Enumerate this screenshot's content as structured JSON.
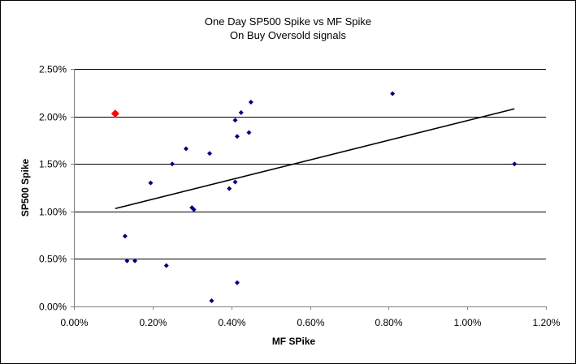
{
  "chart_data": {
    "type": "scatter",
    "title": "One Day SP500 Spike vs MF Spike",
    "subtitle": "On Buy Oversold signals",
    "xlabel": "MF SPike",
    "ylabel": "SP500 Spike",
    "xlim": [
      0,
      1.2
    ],
    "ylim": [
      0,
      2.5
    ],
    "x_ticks": [
      "0.00%",
      "0.20%",
      "0.40%",
      "0.60%",
      "0.80%",
      "1.00%",
      "1.20%"
    ],
    "y_ticks": [
      "0.00%",
      "0.50%",
      "1.00%",
      "1.50%",
      "2.00%",
      "2.50%"
    ],
    "x_tick_values": [
      0,
      0.2,
      0.4,
      0.6,
      0.8,
      1.0,
      1.2
    ],
    "y_tick_values": [
      0,
      0.5,
      1.0,
      1.5,
      2.0,
      2.5
    ],
    "grid": "horizontal",
    "series": [
      {
        "color": "#000080",
        "marker": "diamond",
        "points": [
          {
            "x": 0.13,
            "y": 0.74
          },
          {
            "x": 0.135,
            "y": 0.48
          },
          {
            "x": 0.155,
            "y": 0.48
          },
          {
            "x": 0.195,
            "y": 1.3
          },
          {
            "x": 0.235,
            "y": 0.43
          },
          {
            "x": 0.25,
            "y": 1.5
          },
          {
            "x": 0.285,
            "y": 1.66
          },
          {
            "x": 0.3,
            "y": 1.04
          },
          {
            "x": 0.305,
            "y": 1.02
          },
          {
            "x": 0.345,
            "y": 1.61
          },
          {
            "x": 0.35,
            "y": 0.06
          },
          {
            "x": 0.395,
            "y": 1.24
          },
          {
            "x": 0.41,
            "y": 1.96
          },
          {
            "x": 0.41,
            "y": 1.31
          },
          {
            "x": 0.415,
            "y": 1.79
          },
          {
            "x": 0.415,
            "y": 0.25
          },
          {
            "x": 0.425,
            "y": 2.04
          },
          {
            "x": 0.445,
            "y": 1.83
          },
          {
            "x": 0.45,
            "y": 2.15
          },
          {
            "x": 0.81,
            "y": 2.24
          },
          {
            "x": 1.12,
            "y": 1.5
          }
        ]
      },
      {
        "color": "#ff0000",
        "marker": "diamond",
        "highlight": true,
        "points": [
          {
            "x": 0.105,
            "y": 2.03
          }
        ]
      }
    ],
    "trendline": {
      "type": "linear",
      "color": "#000000",
      "x": [
        0.105,
        1.12
      ],
      "y": [
        1.03,
        2.08
      ]
    }
  }
}
